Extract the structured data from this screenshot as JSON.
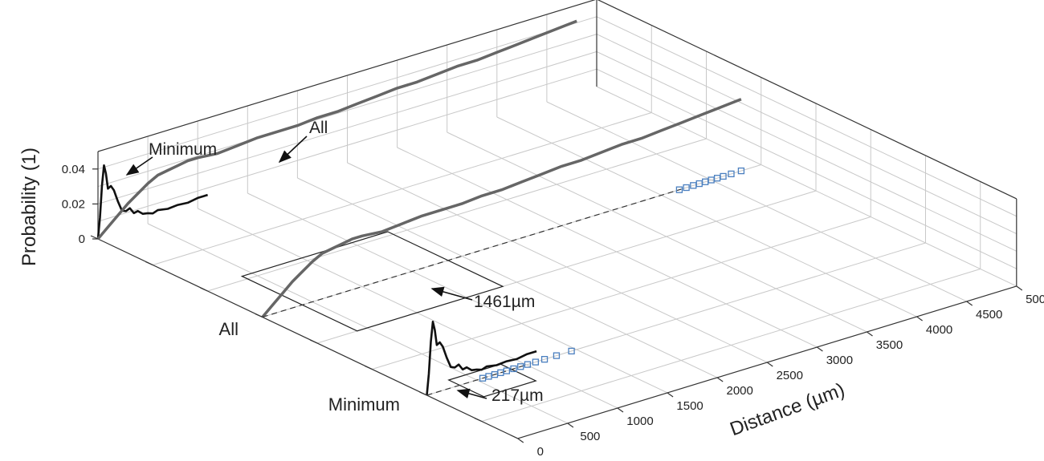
{
  "chart_data": {
    "type": "line3d",
    "ylabel": "Probability (1)",
    "xlabel": "Distance (µm)",
    "zlim": [
      0,
      0.05
    ],
    "xlim": [
      0,
      5000
    ],
    "z_ticks": [
      {
        "value": 0,
        "label": "0"
      },
      {
        "value": 0.02,
        "label": "0.02"
      },
      {
        "value": 0.04,
        "label": "0.04"
      }
    ],
    "x_ticks": [
      {
        "value": 0,
        "label": "0"
      },
      {
        "value": 500,
        "label": "500"
      },
      {
        "value": 1000,
        "label": "1000"
      },
      {
        "value": 1500,
        "label": "1500"
      },
      {
        "value": 2000,
        "label": "2000"
      },
      {
        "value": 2500,
        "label": "2500"
      },
      {
        "value": 3000,
        "label": "3000"
      },
      {
        "value": 3500,
        "label": "3500"
      },
      {
        "value": 4000,
        "label": "4000"
      },
      {
        "value": 4500,
        "label": "4500"
      },
      {
        "value": 5000,
        "label": "5000"
      }
    ],
    "categories": [
      "Minimum",
      "All"
    ],
    "grid": true,
    "series": [
      {
        "name": "Minimum",
        "color": "#111111",
        "x": [
          0,
          20,
          40,
          60,
          80,
          100,
          130,
          160,
          200,
          240,
          280,
          320,
          360,
          400,
          450,
          500,
          550,
          600,
          700,
          800,
          900,
          1000,
          1100
        ],
        "y": [
          0,
          0.012,
          0.03,
          0.041,
          0.036,
          0.027,
          0.028,
          0.025,
          0.018,
          0.012,
          0.011,
          0.012,
          0.0085,
          0.009,
          0.0065,
          0.006,
          0.005,
          0.006,
          0.005,
          0.0055,
          0.005,
          0.006,
          0.006
        ]
      },
      {
        "name": "All",
        "color": "#666666",
        "x": [
          0,
          100,
          200,
          300,
          400,
          500,
          600,
          700,
          800,
          900,
          1000,
          1200,
          1400,
          1600,
          1800,
          2000,
          2200,
          2400,
          2600,
          2800,
          3000,
          3200,
          3400,
          3600,
          3800,
          4000,
          4200,
          4400,
          4600,
          4800
        ],
        "y": [
          0,
          0.005,
          0.01,
          0.015,
          0.019,
          0.023,
          0.026,
          0.027,
          0.028,
          0.029,
          0.029,
          0.028,
          0.029,
          0.03,
          0.03,
          0.03,
          0.031,
          0.031,
          0.032,
          0.033,
          0.034,
          0.034,
          0.035,
          0.036,
          0.036,
          0.037,
          0.038,
          0.039,
          0.04,
          0.041
        ]
      }
    ],
    "floor_points": [
      {
        "series": "Minimum",
        "color": "#4a7fbf",
        "x": [
          560,
          620,
          680,
          740,
          800,
          870,
          940,
          1010,
          1090,
          1180,
          1300,
          1450
        ]
      },
      {
        "series": "All",
        "color": "#4a7fbf",
        "x": [
          4180,
          4250,
          4320,
          4380,
          4440,
          4500,
          4560,
          4620,
          4700,
          4800
        ]
      }
    ],
    "annotations": {
      "minimum_curve": "Minimum",
      "all_curve": "All",
      "all_distance": "1461µm",
      "minimum_distance": "217µm"
    },
    "marker_values": {
      "all_distance": 1461,
      "minimum_distance": 217
    }
  }
}
